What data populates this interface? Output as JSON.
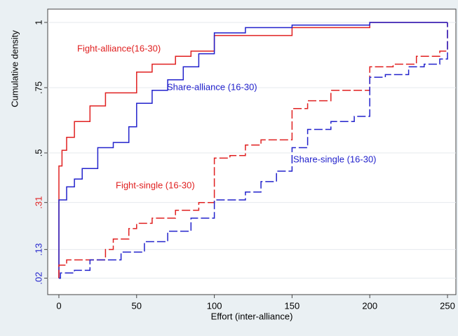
{
  "chart_data": {
    "type": "line",
    "x_label": "Effort (inter-alliance)",
    "y_label": "Cumulative density",
    "xlim": [
      -7.2,
      255.4
    ],
    "ylim": [
      -0.043,
      1.051
    ],
    "xticks": [
      0,
      50,
      100,
      150,
      200,
      250
    ],
    "yticks": [
      {
        "value": 0.02,
        "label": ".02"
      },
      {
        "value": 0.13,
        "label": ".13"
      },
      {
        "value": 0.31,
        "label": ".31"
      },
      {
        "value": 0.5,
        "label": ".5"
      },
      {
        "value": 0.75,
        "label": ".75"
      },
      1
    ],
    "ytick_colors": [
      "#2222cc",
      "#2222cc",
      "#e02020",
      "#000000",
      "#000000",
      "#000000"
    ],
    "grid": true,
    "series": [
      {
        "name": "Fight-alliance(16-30)",
        "color": "#e02020",
        "dash": false,
        "x": [
          0,
          0,
          2,
          2,
          5,
          5,
          10,
          10,
          20,
          20,
          30,
          30,
          50,
          50,
          60,
          60,
          75,
          75,
          85,
          85,
          100,
          100,
          150,
          150,
          200,
          200,
          250
        ],
        "values": [
          0.02,
          0.45,
          0.45,
          0.51,
          0.51,
          0.56,
          0.56,
          0.62,
          0.62,
          0.68,
          0.68,
          0.73,
          0.73,
          0.81,
          0.81,
          0.84,
          0.84,
          0.87,
          0.87,
          0.89,
          0.89,
          0.95,
          0.95,
          0.98,
          0.98,
          1.0,
          1.0
        ]
      },
      {
        "name": "Share-alliance (16-30)",
        "color": "#2222cc",
        "dash": false,
        "x": [
          0,
          0,
          5,
          5,
          10,
          10,
          15,
          15,
          25,
          25,
          35,
          35,
          45,
          45,
          50,
          50,
          60,
          60,
          70,
          70,
          80,
          80,
          90,
          90,
          100,
          100,
          120,
          120,
          150,
          150,
          200,
          200,
          250
        ],
        "values": [
          0.02,
          0.32,
          0.32,
          0.37,
          0.37,
          0.4,
          0.4,
          0.44,
          0.44,
          0.52,
          0.52,
          0.54,
          0.54,
          0.6,
          0.6,
          0.69,
          0.69,
          0.74,
          0.74,
          0.78,
          0.78,
          0.83,
          0.83,
          0.88,
          0.88,
          0.96,
          0.96,
          0.98,
          0.98,
          0.99,
          0.99,
          1.0,
          1.0
        ]
      },
      {
        "name": "Fight-single (16-30)",
        "color": "#e02020",
        "dash": true,
        "x": [
          0,
          0,
          5,
          5,
          30,
          30,
          35,
          35,
          45,
          45,
          50,
          50,
          60,
          60,
          75,
          75,
          90,
          90,
          100,
          100,
          110,
          110,
          120,
          120,
          130,
          130,
          150,
          150,
          160,
          160,
          175,
          175,
          200,
          200,
          215,
          215,
          230,
          230,
          245,
          245,
          250,
          250
        ],
        "values": [
          0.02,
          0.07,
          0.07,
          0.09,
          0.09,
          0.13,
          0.13,
          0.17,
          0.17,
          0.21,
          0.21,
          0.23,
          0.23,
          0.25,
          0.25,
          0.28,
          0.28,
          0.31,
          0.31,
          0.48,
          0.48,
          0.49,
          0.49,
          0.53,
          0.53,
          0.55,
          0.55,
          0.67,
          0.67,
          0.7,
          0.7,
          0.74,
          0.74,
          0.83,
          0.83,
          0.84,
          0.84,
          0.87,
          0.87,
          0.89,
          0.89,
          1.0
        ]
      },
      {
        "name": "Share-single (16-30)",
        "color": "#2222cc",
        "dash": true,
        "x": [
          0,
          1,
          1,
          10,
          10,
          20,
          20,
          40,
          40,
          55,
          55,
          70,
          70,
          85,
          85,
          100,
          100,
          120,
          120,
          130,
          130,
          140,
          140,
          150,
          150,
          160,
          160,
          175,
          175,
          190,
          190,
          200,
          200,
          210,
          210,
          225,
          225,
          235,
          235,
          245,
          245,
          250,
          250
        ],
        "values": [
          0.02,
          0.02,
          0.04,
          0.04,
          0.05,
          0.05,
          0.09,
          0.09,
          0.12,
          0.12,
          0.16,
          0.16,
          0.2,
          0.2,
          0.25,
          0.25,
          0.32,
          0.32,
          0.35,
          0.35,
          0.39,
          0.39,
          0.43,
          0.43,
          0.52,
          0.52,
          0.59,
          0.59,
          0.62,
          0.62,
          0.64,
          0.64,
          0.79,
          0.79,
          0.8,
          0.8,
          0.83,
          0.83,
          0.84,
          0.84,
          0.86,
          0.86,
          1.0
        ]
      }
    ]
  }
}
